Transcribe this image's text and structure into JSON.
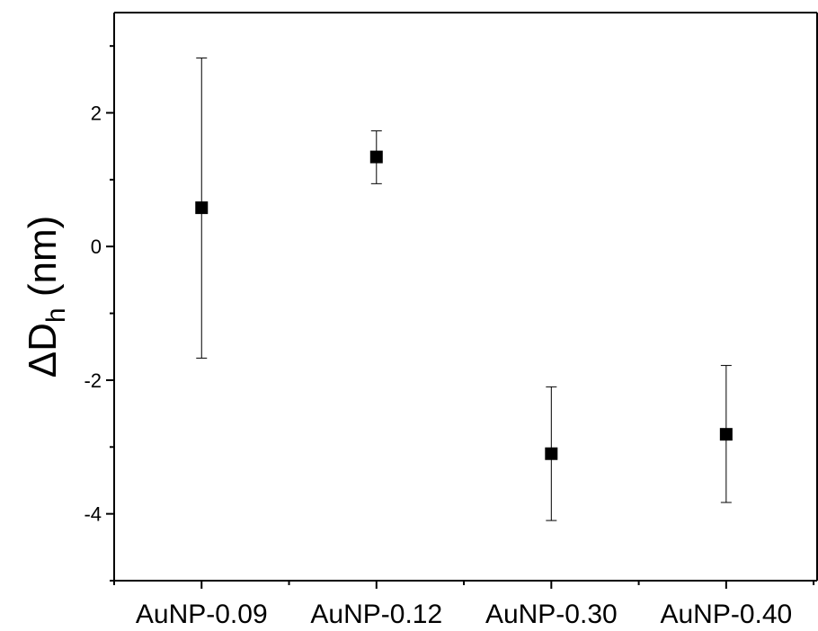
{
  "chart_data": {
    "type": "scatter",
    "title": "",
    "xlabel": "",
    "ylabel": "ΔD",
    "ylabel_subscript": "h",
    "ylabel_unit": " (nm)",
    "categories": [
      "AuNP-0.09",
      "AuNP-0.12",
      "AuNP-0.30",
      "AuNP-0.40"
    ],
    "series": [
      {
        "values": [
          0.58,
          1.34,
          -3.1,
          -2.81
        ],
        "error_low": [
          -1.67,
          0.94,
          -4.1,
          -3.83
        ],
        "error_high": [
          2.82,
          1.73,
          -2.1,
          -1.78
        ],
        "marker": "square",
        "color": "#000000"
      }
    ],
    "ylim": [
      -5,
      3.5
    ],
    "yticks": [
      -4,
      -2,
      0,
      2
    ],
    "ytick_labels": [
      "-4",
      "-2",
      "0",
      "2"
    ],
    "grid": false,
    "legend": "none"
  }
}
